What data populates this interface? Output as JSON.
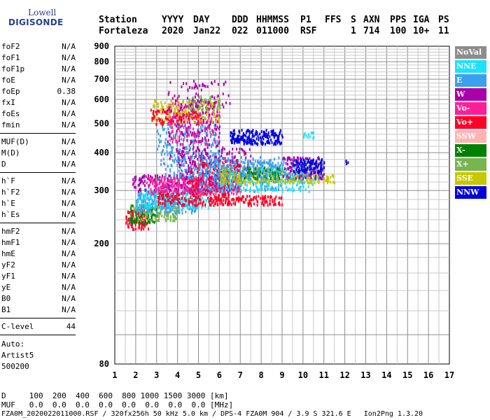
{
  "logo": {
    "line1": "Lowell",
    "line2": "DIGISONDE"
  },
  "header": {
    "row1": [
      "Station",
      "YYYY",
      "DAY",
      "DDD",
      "HHMMSS",
      "P1",
      "FFS",
      "S",
      "AXN",
      "PPS",
      "IGA",
      "PS"
    ],
    "row2": [
      "Fortaleza",
      "2020",
      "Jan22",
      "022",
      "011000",
      "RSF",
      "",
      "1",
      "714",
      "100",
      "10+",
      "11"
    ]
  },
  "params": [
    {
      "group": [
        {
          "key": "foF2",
          "val": "N/A"
        },
        {
          "key": "foF1",
          "val": "N/A"
        },
        {
          "key": "foF1p",
          "val": "N/A"
        },
        {
          "key": "foE",
          "val": "N/A"
        },
        {
          "key": "foEp",
          "val": "0.38"
        },
        {
          "key": "fxI",
          "val": "N/A"
        },
        {
          "key": "foEs",
          "val": "N/A"
        },
        {
          "key": "fmin",
          "val": "N/A"
        }
      ]
    },
    {
      "group": [
        {
          "key": "MUF(D)",
          "val": "N/A"
        },
        {
          "key": "M(D)",
          "val": "N/A"
        },
        {
          "key": "D",
          "val": "N/A"
        }
      ]
    },
    {
      "group": [
        {
          "key": "h`F",
          "val": "N/A"
        },
        {
          "key": "h`F2",
          "val": "N/A"
        },
        {
          "key": "h`E",
          "val": "N/A"
        },
        {
          "key": "h`Es",
          "val": "N/A"
        }
      ]
    },
    {
      "group": [
        {
          "key": "hmF2",
          "val": "N/A"
        },
        {
          "key": "hmF1",
          "val": "N/A"
        },
        {
          "key": "hmE",
          "val": "N/A"
        },
        {
          "key": "yF2",
          "val": "N/A"
        },
        {
          "key": "yF1",
          "val": "N/A"
        },
        {
          "key": "yE",
          "val": "N/A"
        },
        {
          "key": "B0",
          "val": "N/A"
        },
        {
          "key": "B1",
          "val": "N/A"
        }
      ]
    },
    {
      "group": [
        {
          "key": "C-level",
          "val": "44"
        }
      ]
    }
  ],
  "auto": {
    "line1": "Auto:",
    "line2": "Artist5",
    "line3": "500200"
  },
  "footer": {
    "d_row": "D     100  200  400  600  800 1000 1500 3000 [km]",
    "muf_row": "MUF   0.0  0.0  0.0  0.0  0.0  0.0  0.0  0.0 [MHz]",
    "info": "FZA0M_2020022011000.RSF / 320fx256h 50 kHz 5.0 km / DPS-4 FZA0M 904 / 3.9 S 321.6 E   Ion2Png 1.3.20"
  },
  "chart_data": {
    "type": "scatter",
    "x_ticks": [
      1,
      2,
      3,
      4,
      5,
      6,
      7,
      8,
      9,
      10,
      11,
      12,
      13,
      14,
      15,
      16,
      17
    ],
    "y_ticks": [
      80,
      200,
      300,
      400,
      500,
      600,
      700,
      800,
      900
    ],
    "xlim": [
      1,
      17
    ],
    "ylim": [
      80,
      900
    ],
    "y_scale": "log",
    "grid": true,
    "legend_position": "right",
    "legend": [
      {
        "name": "NoVal",
        "color": "#8c8c8c"
      },
      {
        "name": "NNE",
        "color": "#1ee1ff"
      },
      {
        "name": "E",
        "color": "#3ca0f0"
      },
      {
        "name": "W",
        "color": "#aa00aa"
      },
      {
        "name": "Vo-",
        "color": "#ff1e96"
      },
      {
        "name": "Vo+",
        "color": "#ff0028"
      },
      {
        "name": "SSW",
        "color": "#ffb4b4"
      },
      {
        "name": "X-",
        "color": "#008200"
      },
      {
        "name": "X+",
        "color": "#78b450"
      },
      {
        "name": "SSE",
        "color": "#c8c800"
      },
      {
        "name": "NNW",
        "color": "#0000dc"
      }
    ],
    "clusters": [
      {
        "series": "Vo+",
        "x": [
          1.5,
          2.6
        ],
        "y": [
          225,
          260
        ],
        "n": 120
      },
      {
        "series": "X-",
        "x": [
          1.7,
          3.0
        ],
        "y": [
          235,
          270
        ],
        "n": 90
      },
      {
        "series": "X+",
        "x": [
          1.7,
          4.0
        ],
        "y": [
          240,
          275
        ],
        "n": 140
      },
      {
        "series": "E",
        "x": [
          2.0,
          5.0
        ],
        "y": [
          255,
          300
        ],
        "n": 260
      },
      {
        "series": "NNE",
        "x": [
          2.0,
          5.5
        ],
        "y": [
          265,
          310
        ],
        "n": 200
      },
      {
        "series": "Vo+",
        "x": [
          3.0,
          6.5
        ],
        "y": [
          270,
          300
        ],
        "n": 160
      },
      {
        "series": "Vo+",
        "x": [
          5.5,
          9.0
        ],
        "y": [
          270,
          290
        ],
        "n": 140
      },
      {
        "series": "W",
        "x": [
          1.8,
          6.5
        ],
        "y": [
          300,
          340
        ],
        "n": 260
      },
      {
        "series": "Vo-",
        "x": [
          2.5,
          7.0
        ],
        "y": [
          295,
          335
        ],
        "n": 240
      },
      {
        "series": "Vo+",
        "x": [
          4.5,
          7.0
        ],
        "y": [
          300,
          380
        ],
        "n": 220
      },
      {
        "series": "W",
        "x": [
          4.0,
          7.5
        ],
        "y": [
          330,
          420
        ],
        "n": 180
      },
      {
        "series": "E",
        "x": [
          5.0,
          9.0
        ],
        "y": [
          300,
          390
        ],
        "n": 260
      },
      {
        "series": "NNE",
        "x": [
          6.0,
          10.5
        ],
        "y": [
          300,
          360
        ],
        "n": 230
      },
      {
        "series": "SSE",
        "x": [
          6.0,
          11.5
        ],
        "y": [
          320,
          345
        ],
        "n": 200
      },
      {
        "series": "X+",
        "x": [
          6.0,
          10.0
        ],
        "y": [
          320,
          360
        ],
        "n": 120
      },
      {
        "series": "X-",
        "x": [
          7.0,
          9.0
        ],
        "y": [
          330,
          360
        ],
        "n": 60
      },
      {
        "series": "E",
        "x": [
          7.0,
          11.0
        ],
        "y": [
          330,
          380
        ],
        "n": 160
      },
      {
        "series": "W",
        "x": [
          9.0,
          11.0
        ],
        "y": [
          330,
          390
        ],
        "n": 100
      },
      {
        "series": "NNW",
        "x": [
          9.5,
          11.0
        ],
        "y": [
          345,
          385
        ],
        "n": 90
      },
      {
        "series": "NNW",
        "x": [
          6.5,
          9.0
        ],
        "y": [
          430,
          480
        ],
        "n": 200
      },
      {
        "series": "E",
        "x": [
          3.0,
          6.0
        ],
        "y": [
          330,
          500
        ],
        "n": 260
      },
      {
        "series": "W",
        "x": [
          3.5,
          6.0
        ],
        "y": [
          380,
          580
        ],
        "n": 180
      },
      {
        "series": "Vo-",
        "x": [
          3.5,
          6.0
        ],
        "y": [
          430,
          600
        ],
        "n": 150
      },
      {
        "series": "SSE",
        "x": [
          2.8,
          6.0
        ],
        "y": [
          510,
          600
        ],
        "n": 150
      },
      {
        "series": "Vo+",
        "x": [
          2.7,
          5.0
        ],
        "y": [
          500,
          560
        ],
        "n": 80
      },
      {
        "series": "X+",
        "x": [
          4.5,
          6.0
        ],
        "y": [
          560,
          620
        ],
        "n": 60
      },
      {
        "series": "W",
        "x": [
          3.5,
          6.5
        ],
        "y": [
          560,
          700
        ],
        "n": 70
      },
      {
        "series": "NNE",
        "x": [
          10.0,
          10.5
        ],
        "y": [
          450,
          470
        ],
        "n": 12
      },
      {
        "series": "NNW",
        "x": [
          12.0,
          12.2
        ],
        "y": [
          370,
          380
        ],
        "n": 4
      }
    ]
  }
}
